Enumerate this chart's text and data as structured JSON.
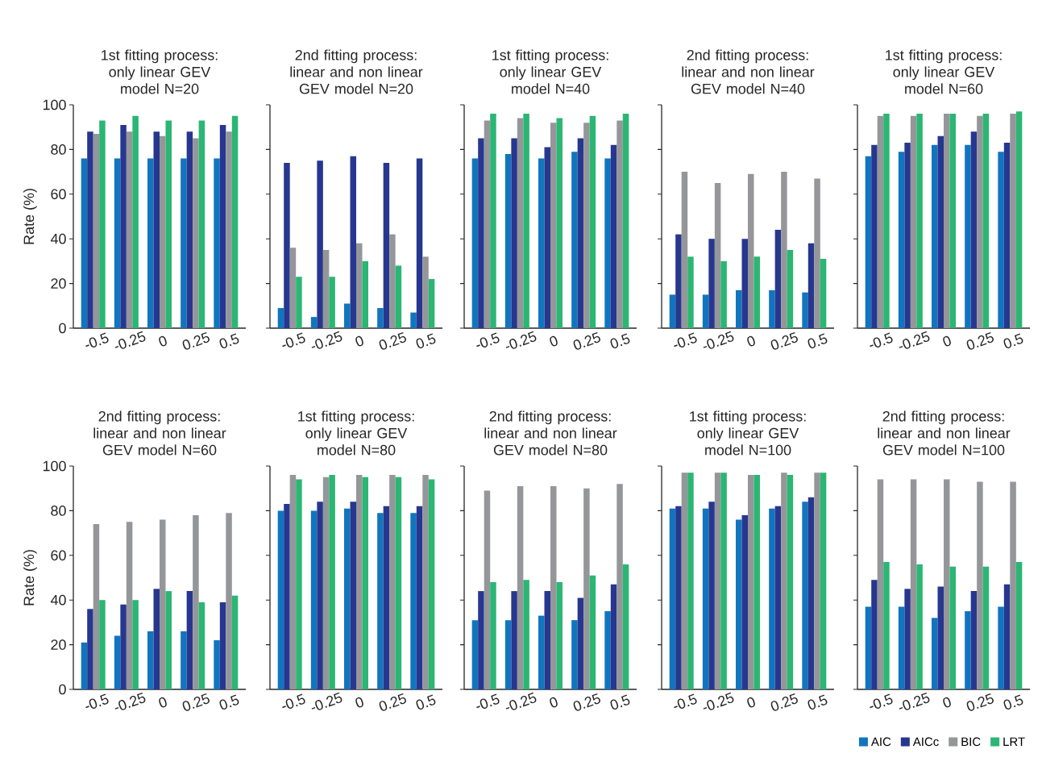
{
  "chart_data": [
    {
      "type": "bar",
      "title": "1st fitting process: only linear GEV model N=20",
      "ylabel": "Rate (%)",
      "categories": [
        "-0.5",
        "-0.25",
        "0",
        "0.25",
        "0.5"
      ],
      "ylim": [
        0,
        100
      ],
      "yticks": [
        0,
        20,
        40,
        60,
        80,
        100
      ],
      "series": [
        {
          "color": "#1175be",
          "values": [
            76,
            76,
            76,
            76,
            76
          ]
        },
        {
          "color": "#27378f",
          "values": [
            88,
            91,
            88,
            88,
            91
          ]
        },
        {
          "color": "#959699",
          "values": [
            87,
            88,
            86,
            85,
            88
          ]
        },
        {
          "color": "#2bb673",
          "values": [
            93,
            95,
            93,
            93,
            95
          ]
        }
      ]
    },
    {
      "type": "bar",
      "title": "2nd fitting process: linear and non linear GEV model N=20",
      "categories": [
        "-0.5",
        "-0.25",
        "0",
        "0.25",
        "0.5"
      ],
      "ylim": [
        0,
        100
      ],
      "yticks": [
        0,
        20,
        40,
        60,
        80,
        100
      ],
      "tick_labels": "x",
      "series": [
        {
          "color": "#1175be",
          "values": [
            9,
            5,
            11,
            9,
            7
          ]
        },
        {
          "color": "#27378f",
          "values": [
            74,
            75,
            77,
            74,
            76
          ]
        },
        {
          "color": "#959699",
          "values": [
            36,
            35,
            38,
            42,
            32
          ]
        },
        {
          "color": "#2bb673",
          "values": [
            23,
            23,
            30,
            28,
            22
          ]
        }
      ]
    },
    {
      "type": "bar",
      "title": "1st fitting process: only linear GEV model N=40",
      "categories": [
        "-0.5",
        "-0.25",
        "0",
        "0.25",
        "0.5"
      ],
      "ylim": [
        0,
        100
      ],
      "yticks": [
        0,
        20,
        40,
        60,
        80,
        100
      ],
      "tick_labels": "x",
      "series": [
        {
          "color": "#1175be",
          "values": [
            76,
            78,
            76,
            79,
            76
          ]
        },
        {
          "color": "#27378f",
          "values": [
            85,
            85,
            81,
            85,
            82
          ]
        },
        {
          "color": "#959699",
          "values": [
            93,
            94,
            92,
            92,
            93
          ]
        },
        {
          "color": "#2bb673",
          "values": [
            96,
            96,
            94,
            95,
            96
          ]
        }
      ]
    },
    {
      "type": "bar",
      "title": "2nd fitting process: linear and non linear GEV model N=40",
      "categories": [
        "-0.5",
        "-0.25",
        "0",
        "0.25",
        "0.5"
      ],
      "ylim": [
        0,
        100
      ],
      "yticks": [
        0,
        20,
        40,
        60,
        80,
        100
      ],
      "tick_labels": "x",
      "series": [
        {
          "color": "#1175be",
          "values": [
            15,
            15,
            17,
            17,
            16
          ]
        },
        {
          "color": "#27378f",
          "values": [
            42,
            40,
            40,
            44,
            38
          ]
        },
        {
          "color": "#959699",
          "values": [
            70,
            65,
            69,
            70,
            67
          ]
        },
        {
          "color": "#2bb673",
          "values": [
            32,
            30,
            32,
            35,
            31
          ]
        }
      ]
    },
    {
      "type": "bar",
      "title": "1st fitting process: only linear GEV model N=60",
      "categories": [
        "-0.5",
        "-0.25",
        "0",
        "0.25",
        "0.5"
      ],
      "ylim": [
        0,
        100
      ],
      "yticks": [
        0,
        20,
        40,
        60,
        80,
        100
      ],
      "tick_labels": "x",
      "series": [
        {
          "color": "#1175be",
          "values": [
            77,
            79,
            82,
            82,
            79
          ]
        },
        {
          "color": "#27378f",
          "values": [
            82,
            83,
            86,
            88,
            83
          ]
        },
        {
          "color": "#959699",
          "values": [
            95,
            95,
            96,
            95,
            96
          ]
        },
        {
          "color": "#2bb673",
          "values": [
            96,
            96,
            96,
            96,
            97
          ]
        }
      ]
    },
    {
      "type": "bar",
      "title": "2nd fitting process: linear and non linear GEV model N=60",
      "ylabel": "Rate (%)",
      "categories": [
        "-0.5",
        "-0.25",
        "0",
        "0.25",
        "0.5"
      ],
      "ylim": [
        0,
        100
      ],
      "yticks": [
        0,
        20,
        40,
        60,
        80,
        100
      ],
      "series": [
        {
          "color": "#1175be",
          "values": [
            21,
            24,
            26,
            26,
            22
          ]
        },
        {
          "color": "#27378f",
          "values": [
            36,
            38,
            45,
            44,
            39
          ]
        },
        {
          "color": "#959699",
          "values": [
            74,
            75,
            76,
            78,
            79
          ]
        },
        {
          "color": "#2bb673",
          "values": [
            40,
            40,
            44,
            39,
            42
          ]
        }
      ]
    },
    {
      "type": "bar",
      "title": "1st fitting process: only linear GEV model N=80",
      "categories": [
        "-0.5",
        "-0.25",
        "0",
        "0.25",
        "0.5"
      ],
      "ylim": [
        0,
        100
      ],
      "yticks": [
        0,
        20,
        40,
        60,
        80,
        100
      ],
      "tick_labels": "x",
      "series": [
        {
          "color": "#1175be",
          "values": [
            80,
            80,
            81,
            79,
            79
          ]
        },
        {
          "color": "#27378f",
          "values": [
            83,
            84,
            84,
            82,
            82
          ]
        },
        {
          "color": "#959699",
          "values": [
            96,
            95,
            96,
            96,
            96
          ]
        },
        {
          "color": "#2bb673",
          "values": [
            94,
            96,
            95,
            95,
            94
          ]
        }
      ]
    },
    {
      "type": "bar",
      "title": "2nd fitting process: linear and non linear GEV model N=80",
      "categories": [
        "-0.5",
        "-0.25",
        "0",
        "0.25",
        "0.5"
      ],
      "ylim": [
        0,
        100
      ],
      "yticks": [
        0,
        20,
        40,
        60,
        80,
        100
      ],
      "tick_labels": "x",
      "series": [
        {
          "color": "#1175be",
          "values": [
            31,
            31,
            33,
            31,
            35
          ]
        },
        {
          "color": "#27378f",
          "values": [
            44,
            44,
            44,
            41,
            47
          ]
        },
        {
          "color": "#959699",
          "values": [
            89,
            91,
            91,
            90,
            92
          ]
        },
        {
          "color": "#2bb673",
          "values": [
            48,
            49,
            48,
            51,
            56
          ]
        }
      ]
    },
    {
      "type": "bar",
      "title": "1st fitting process: only linear GEV model N=100",
      "categories": [
        "-0.5",
        "-0.25",
        "0",
        "0.25",
        "0.5"
      ],
      "ylim": [
        0,
        100
      ],
      "yticks": [
        0,
        20,
        40,
        60,
        80,
        100
      ],
      "tick_labels": "x",
      "series": [
        {
          "color": "#1175be",
          "values": [
            81,
            81,
            76,
            81,
            84
          ]
        },
        {
          "color": "#27378f",
          "values": [
            82,
            84,
            78,
            82,
            86
          ]
        },
        {
          "color": "#959699",
          "values": [
            97,
            97,
            96,
            97,
            97
          ]
        },
        {
          "color": "#2bb673",
          "values": [
            97,
            97,
            96,
            96,
            97
          ]
        }
      ]
    },
    {
      "type": "bar",
      "title": "2nd fitting process: linear and non linear GEV model N=100",
      "categories": [
        "-0.5",
        "-0.25",
        "0",
        "0.25",
        "0.5"
      ],
      "ylim": [
        0,
        100
      ],
      "yticks": [
        0,
        20,
        40,
        60,
        80,
        100
      ],
      "tick_labels": "x",
      "legend": "bottom",
      "series": [
        {
          "name": "AIC",
          "color": "#1175be",
          "values": [
            37,
            37,
            32,
            35,
            37
          ]
        },
        {
          "name": "AICc",
          "color": "#27378f",
          "values": [
            49,
            45,
            46,
            44,
            47
          ]
        },
        {
          "name": "BIC",
          "color": "#959699",
          "values": [
            94,
            94,
            94,
            93,
            93
          ]
        },
        {
          "name": "LRT",
          "color": "#2bb673",
          "values": [
            57,
            56,
            55,
            55,
            57
          ]
        }
      ]
    }
  ]
}
